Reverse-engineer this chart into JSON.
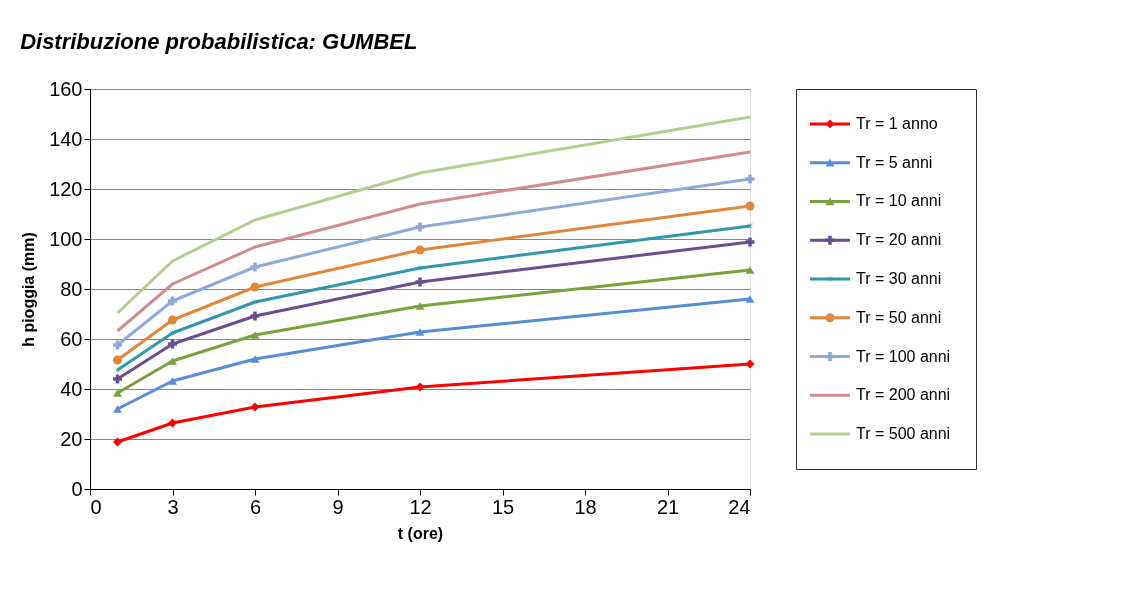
{
  "chart_data": {
    "type": "line",
    "title": "Distribuzione probabilistica:  GUMBEL",
    "xlabel": "t (ore)",
    "ylabel": "h pioggia (mm)",
    "x": [
      1,
      3,
      6,
      12,
      24
    ],
    "series": [
      {
        "name": "Tr = 1 anno",
        "color": "#ff0000",
        "marker": "diamond",
        "values": [
          18.8,
          26.4,
          32.8,
          40.8,
          50
        ]
      },
      {
        "name": "Tr = 5 anni",
        "color": "#558ed5",
        "marker": "triangle",
        "values": [
          32,
          43.2,
          52,
          62.8,
          76
        ]
      },
      {
        "name": "Tr = 10 anni",
        "color": "#77a33c",
        "marker": "triangle",
        "values": [
          38.4,
          51.2,
          61.6,
          73.2,
          87.6
        ]
      },
      {
        "name": "Tr = 20 anni",
        "color": "#6a4f8e",
        "marker": "cross",
        "values": [
          44,
          58,
          69.2,
          82.8,
          98.8
        ]
      },
      {
        "name": "Tr = 30 anni",
        "color": "#3197ad",
        "marker": "star",
        "values": [
          47.6,
          62.4,
          74.8,
          88.4,
          105.2
        ]
      },
      {
        "name": "Tr = 50 anni",
        "color": "#e0873a",
        "marker": "circle",
        "values": [
          51.6,
          67.6,
          80.8,
          95.6,
          113.2
        ]
      },
      {
        "name": "Tr = 100 anni",
        "color": "#8faad8",
        "marker": "cross",
        "values": [
          57.6,
          75.2,
          88.8,
          104.8,
          124
        ]
      },
      {
        "name": "Tr = 200 anni",
        "color": "#d38c8c",
        "marker": "none",
        "values": [
          63.2,
          82,
          96.8,
          114,
          134.8
        ]
      },
      {
        "name": "Tr = 500 anni",
        "color": "#b3cf8f",
        "marker": "none",
        "values": [
          70.4,
          91.2,
          107.6,
          126.4,
          148.8
        ]
      }
    ],
    "xlim": [
      0,
      24
    ],
    "xticks": [
      0,
      3,
      6,
      9,
      12,
      15,
      18,
      21,
      24
    ],
    "ylim": [
      0,
      160
    ],
    "yticks": [
      0,
      20,
      40,
      60,
      80,
      100,
      120,
      140,
      160
    ],
    "grid": "y",
    "legend": "right",
    "line_style": "solid"
  }
}
